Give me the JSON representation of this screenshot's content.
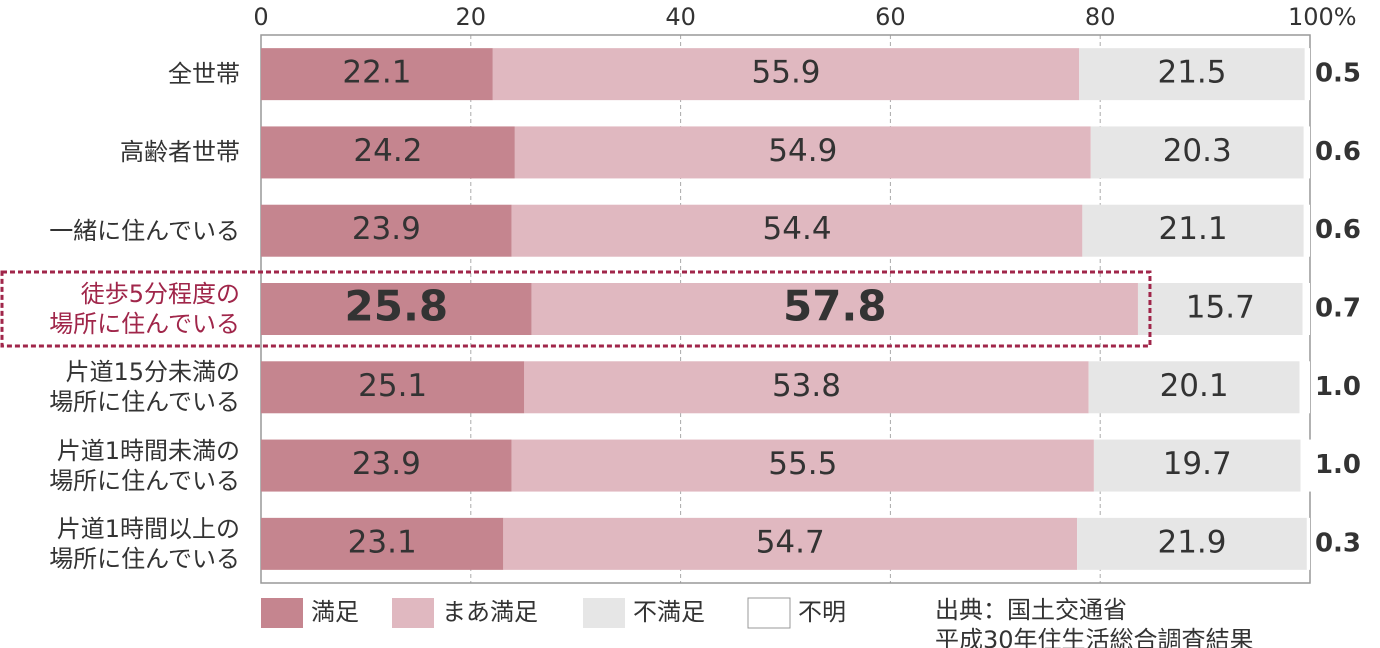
{
  "chart_data": {
    "type": "stacked-barh",
    "categories": [
      "全世帯",
      "高齢者世帯",
      "一緒に住んでいる",
      "徒歩5分程度の\n場所に住んでいる",
      "片道15分未満の\n場所に住んでいる",
      "片道1時間未満の\n場所に住んでいる",
      "片道1時間以上の\n場所に住んでいる"
    ],
    "series": [
      {
        "name": "満足",
        "color": "#c5858f",
        "values": [
          22.1,
          24.2,
          23.9,
          25.8,
          25.1,
          23.9,
          23.1
        ]
      },
      {
        "name": "まあ満足",
        "color": "#e0b8c0",
        "values": [
          55.9,
          54.9,
          54.4,
          57.8,
          53.8,
          55.5,
          54.7
        ]
      },
      {
        "name": "不満足",
        "color": "#e6e6e6",
        "values": [
          21.5,
          20.3,
          21.1,
          15.7,
          20.1,
          19.7,
          21.9
        ]
      },
      {
        "name": "不明",
        "color": "#ffffff",
        "values": [
          0.5,
          0.6,
          0.6,
          0.7,
          1.0,
          1.0,
          0.3
        ],
        "value_labels": [
          "0.5",
          "0.6",
          "0.6",
          "0.7",
          "1.0",
          "1.0",
          "0.3"
        ]
      }
    ],
    "xlim": [
      0,
      100
    ],
    "xticks": [
      0,
      20,
      40,
      60,
      80,
      {
        "value": 100,
        "label": "100%"
      }
    ],
    "grid": true,
    "highlight_index": 3,
    "highlight_color": "#a0264a",
    "source": [
      "出典：国土交通省",
      "平成30年住生活総合調査結果"
    ]
  }
}
